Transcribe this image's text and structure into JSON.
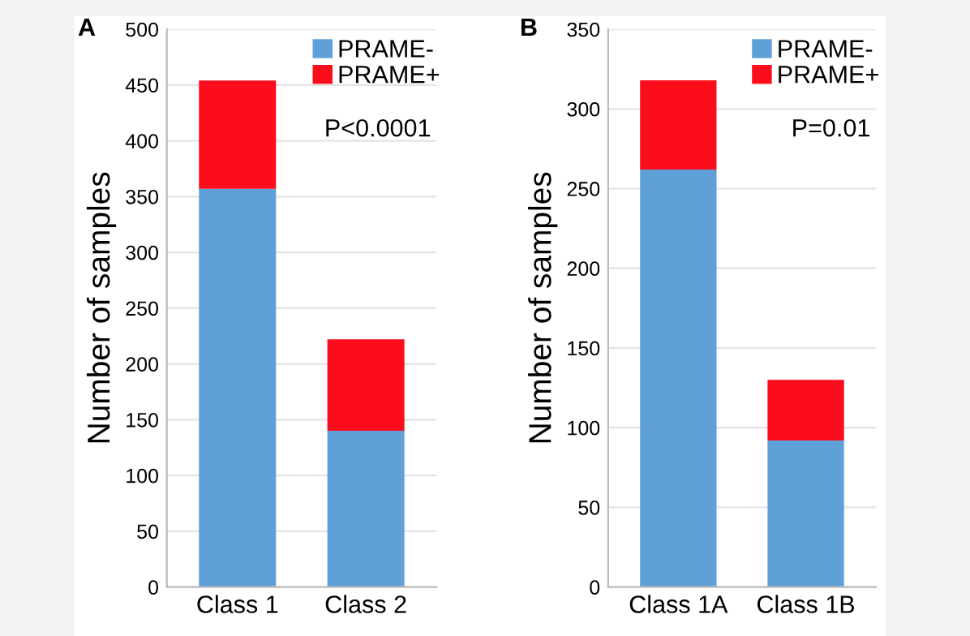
{
  "chart_data": [
    {
      "type": "bar",
      "title": "A",
      "ylabel": "Number of samples",
      "categories": [
        "Class 1",
        "Class 2"
      ],
      "stacked": true,
      "series": [
        {
          "name": "PRAME-",
          "color": "#5fa0d8",
          "values": [
            357,
            140
          ]
        },
        {
          "name": "PRAME+",
          "color": "#fc0d1b",
          "values": [
            97,
            82
          ]
        }
      ],
      "ylim": [
        0,
        500
      ],
      "yticks": [
        0,
        50,
        100,
        150,
        200,
        250,
        300,
        350,
        400,
        450,
        500
      ],
      "grid": "y",
      "legend": "top right",
      "annotations": [
        "P<0.0001"
      ]
    },
    {
      "type": "bar",
      "title": "B",
      "ylabel": "Number of samples",
      "categories": [
        "Class 1A",
        "Class 1B"
      ],
      "stacked": true,
      "series": [
        {
          "name": "PRAME-",
          "color": "#5fa0d8",
          "values": [
            262,
            92
          ]
        },
        {
          "name": "PRAME+",
          "color": "#fc0d1b",
          "values": [
            56,
            38
          ]
        }
      ],
      "ylim": [
        0,
        350
      ],
      "yticks": [
        0,
        50,
        100,
        150,
        200,
        250,
        300,
        350
      ],
      "grid": "y",
      "legend": "top right",
      "annotations": [
        "P=0.01"
      ]
    }
  ]
}
